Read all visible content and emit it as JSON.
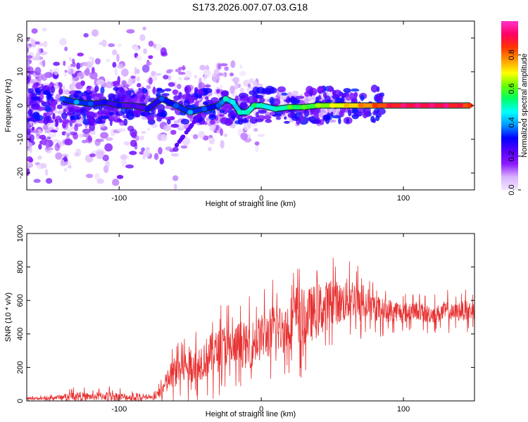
{
  "figure": {
    "title": "S173.2026.007.07.03.G18"
  },
  "chart_data": [
    {
      "type": "heatmap",
      "name": "spectrogram",
      "xlabel": "Height of straight line (km)",
      "ylabel": "Frequency (Hz)",
      "xlim": [
        -165,
        150
      ],
      "ylim": [
        -25,
        25
      ],
      "xticks": [
        -100,
        0,
        100
      ],
      "xtick_labels": [
        "-100",
        "0",
        "100"
      ],
      "yticks": [
        -20,
        -10,
        0,
        10,
        20
      ],
      "ytick_labels": [
        "-20",
        "-10",
        "0",
        "10",
        "20"
      ],
      "colorbar": {
        "label": "Normalized spectral amplitude",
        "range": [
          0,
          1
        ],
        "ticks": [
          0.0,
          0.2,
          0.4,
          0.6,
          0.8
        ],
        "tick_labels": [
          "0.0",
          "0.2",
          "0.4",
          "0.6",
          "0.8"
        ],
        "colors": [
          "#f2e6ff",
          "#d9b3ff",
          "#8c1aff",
          "#5500ff",
          "#0000ff",
          "#0099ff",
          "#00ffff",
          "#00ff66",
          "#66ff00",
          "#ffff00",
          "#ff9900",
          "#ff3300",
          "#ff0066",
          "#ff33cc"
        ]
      },
      "ridge": [
        {
          "x": -140,
          "f": 2,
          "amp": 0.3
        },
        {
          "x": -130,
          "f": 1,
          "amp": 0.35
        },
        {
          "x": -120,
          "f": 0.5,
          "amp": 0.3
        },
        {
          "x": -110,
          "f": 1,
          "amp": 0.25
        },
        {
          "x": -100,
          "f": 0,
          "amp": 0.25
        },
        {
          "x": -90,
          "f": 0,
          "amp": 0.2
        },
        {
          "x": -80,
          "f": -1,
          "amp": 0.25
        },
        {
          "x": -70,
          "f": 2,
          "amp": 0.3
        },
        {
          "x": -60,
          "f": 0,
          "amp": 0.3
        },
        {
          "x": -50,
          "f": -2,
          "amp": 0.35
        },
        {
          "x": -40,
          "f": -1,
          "amp": 0.3
        },
        {
          "x": -30,
          "f": 0,
          "amp": 0.3
        },
        {
          "x": -25,
          "f": 2,
          "amp": 0.45
        },
        {
          "x": -20,
          "f": 1,
          "amp": 0.4
        },
        {
          "x": -15,
          "f": -2,
          "amp": 0.45
        },
        {
          "x": -10,
          "f": -2,
          "amp": 0.45
        },
        {
          "x": -5,
          "f": 0,
          "amp": 0.5
        },
        {
          "x": 0,
          "f": 0,
          "amp": 0.45
        },
        {
          "x": 10,
          "f": -1,
          "amp": 0.45
        },
        {
          "x": 20,
          "f": -0.5,
          "amp": 0.55
        },
        {
          "x": 30,
          "f": -0.5,
          "amp": 0.55
        },
        {
          "x": 40,
          "f": 0,
          "amp": 0.6
        },
        {
          "x": 50,
          "f": 0,
          "amp": 0.65
        },
        {
          "x": 60,
          "f": 0,
          "amp": 0.7
        },
        {
          "x": 70,
          "f": 0,
          "amp": 0.75
        },
        {
          "x": 80,
          "f": 0,
          "amp": 0.8
        },
        {
          "x": 90,
          "f": 0,
          "amp": 0.85
        },
        {
          "x": 100,
          "f": 0,
          "amp": 0.9
        },
        {
          "x": 110,
          "f": 0,
          "amp": 0.9
        },
        {
          "x": 120,
          "f": 0,
          "amp": 0.9
        },
        {
          "x": 130,
          "f": 0,
          "amp": 0.9
        },
        {
          "x": 140,
          "f": 0,
          "amp": 0.85
        },
        {
          "x": 147,
          "f": 0,
          "amp": 0.8
        }
      ]
    },
    {
      "type": "line",
      "name": "snr",
      "xlabel": "Height of straight line (km)",
      "ylabel": "SNR (10 * v/v)",
      "xlim": [
        -165,
        150
      ],
      "ylim": [
        0,
        1000
      ],
      "xticks": [
        -100,
        0,
        100
      ],
      "xtick_labels": [
        "-100",
        "0",
        "100"
      ],
      "yticks": [
        0,
        200,
        400,
        600,
        800,
        1000
      ],
      "ytick_labels": [
        "0",
        "200",
        "400",
        "600",
        "800",
        "1000"
      ],
      "color": "#e83030",
      "series": [
        {
          "name": "SNR",
          "x": [
            -165,
            -150,
            -140,
            -130,
            -120,
            -110,
            -100,
            -90,
            -80,
            -75,
            -70,
            -65,
            -60,
            -55,
            -50,
            -45,
            -40,
            -35,
            -30,
            -25,
            -20,
            -15,
            -10,
            -5,
            0,
            5,
            10,
            15,
            20,
            25,
            30,
            35,
            40,
            45,
            50,
            55,
            60,
            65,
            70,
            75,
            80,
            85,
            90,
            95,
            100,
            105,
            110,
            115,
            120,
            125,
            130,
            135,
            140,
            145,
            150
          ],
          "y": [
            15,
            15,
            25,
            30,
            25,
            30,
            25,
            20,
            15,
            20,
            60,
            130,
            180,
            200,
            220,
            230,
            250,
            280,
            300,
            330,
            300,
            350,
            320,
            350,
            380,
            400,
            440,
            420,
            460,
            520,
            500,
            520,
            540,
            560,
            600,
            580,
            600,
            620,
            560,
            560,
            560,
            540,
            540,
            540,
            520,
            540,
            540,
            520,
            520,
            520,
            540,
            520,
            540,
            540,
            540
          ],
          "spread": [
            15,
            15,
            30,
            50,
            40,
            50,
            45,
            35,
            30,
            30,
            80,
            150,
            180,
            180,
            200,
            200,
            220,
            230,
            230,
            250,
            220,
            260,
            240,
            260,
            250,
            270,
            280,
            260,
            290,
            330,
            300,
            300,
            300,
            280,
            250,
            230,
            240,
            220,
            180,
            150,
            150,
            130,
            130,
            120,
            110,
            110,
            100,
            100,
            100,
            100,
            110,
            100,
            110,
            110,
            100
          ]
        }
      ]
    }
  ]
}
